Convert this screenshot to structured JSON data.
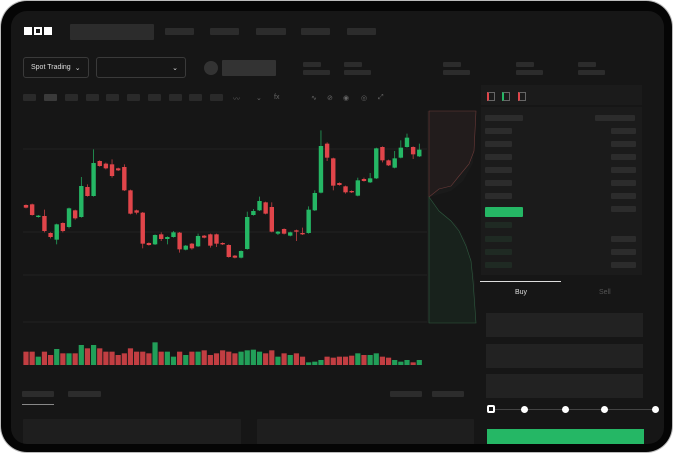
{
  "brand": {
    "logo": "OKX"
  },
  "toolbar": {
    "market_select": "Spot Trading"
  },
  "order_form": {
    "buy_tab": "Buy",
    "sell_tab": "Sell",
    "slider_percent": 0
  },
  "colors": {
    "up": "#25b765",
    "down": "#e0454a",
    "background": "#161616"
  },
  "icons": [
    "chevron-down-icon",
    "orderbook-both-icon",
    "orderbook-bids-icon",
    "orderbook-asks-icon"
  ],
  "chart_data": {
    "type": "candlestick",
    "ohlc": [
      [
        218,
        220,
        208,
        210
      ],
      [
        220,
        222,
        186,
        188
      ],
      [
        182,
        188,
        180,
        186
      ],
      [
        185,
        204,
        136,
        140
      ],
      [
        134,
        136,
        118,
        122
      ],
      [
        114,
        162,
        100,
        160
      ],
      [
        164,
        166,
        136,
        140
      ],
      [
        152,
        210,
        148,
        208
      ],
      [
        202,
        204,
        174,
        178
      ],
      [
        182,
        302,
        180,
        275
      ],
      [
        272,
        280,
        243,
        245
      ],
      [
        245,
        385,
        243,
        344
      ],
      [
        350,
        352,
        333,
        335
      ],
      [
        342,
        345,
        325,
        328
      ],
      [
        340,
        355,
        300,
        305
      ],
      [
        328,
        330,
        320,
        322
      ],
      [
        332,
        340,
        260,
        262
      ],
      [
        262,
        264,
        190,
        192
      ],
      [
        202,
        204,
        190,
        195
      ],
      [
        195,
        197,
        88,
        102
      ],
      [
        104,
        106,
        96,
        98
      ],
      [
        100,
        130,
        98,
        128
      ],
      [
        130,
        136,
        110,
        116
      ],
      [
        116,
        124,
        100,
        122
      ],
      [
        122,
        140,
        120,
        136
      ],
      [
        135,
        137,
        75,
        85
      ],
      [
        84,
        98,
        82,
        96
      ],
      [
        102,
        104,
        84,
        88
      ],
      [
        94,
        132,
        92,
        125
      ],
      [
        126,
        128,
        118,
        120
      ],
      [
        130,
        132,
        90,
        96
      ],
      [
        130,
        132,
        92,
        102
      ],
      [
        104,
        106,
        98,
        100
      ],
      [
        98,
        100,
        60,
        62
      ],
      [
        66,
        68,
        58,
        60
      ],
      [
        60,
        82,
        58,
        80
      ],
      [
        86,
        198,
        84,
        182
      ],
      [
        188,
        206,
        186,
        200
      ],
      [
        202,
        243,
        200,
        230
      ],
      [
        226,
        228,
        190,
        192
      ],
      [
        212,
        226,
        136,
        138
      ],
      [
        132,
        140,
        128,
        138
      ],
      [
        146,
        148,
        130,
        132
      ],
      [
        126,
        138,
        124,
        136
      ],
      [
        142,
        144,
        110,
        138
      ],
      [
        134,
        150,
        128,
        130
      ],
      [
        134,
        214,
        132,
        204
      ],
      [
        202,
        262,
        200,
        254
      ],
      [
        255,
        442,
        253,
        395
      ],
      [
        402,
        406,
        350,
        360
      ],
      [
        358,
        360,
        262,
        276
      ],
      [
        284,
        286,
        276,
        278
      ],
      [
        274,
        276,
        252,
        256
      ],
      [
        260,
        262,
        254,
        256
      ],
      [
        246,
        300,
        244,
        292
      ],
      [
        296,
        300,
        288,
        290
      ],
      [
        286,
        314,
        284,
        298
      ],
      [
        298,
        390,
        296,
        388
      ],
      [
        392,
        394,
        346,
        352
      ],
      [
        352,
        354,
        335,
        337
      ],
      [
        330,
        380,
        328,
        358
      ],
      [
        360,
        412,
        358,
        390
      ],
      [
        392,
        432,
        390,
        420
      ],
      [
        392,
        394,
        356,
        370
      ],
      [
        364,
        402,
        362,
        384
      ]
    ],
    "volume": [
      40,
      40,
      25,
      40,
      30,
      48,
      35,
      35,
      35,
      60,
      50,
      60,
      50,
      40,
      40,
      30,
      35,
      50,
      40,
      40,
      35,
      68,
      40,
      40,
      25,
      40,
      30,
      40,
      40,
      44,
      30,
      35,
      44,
      40,
      35,
      40,
      44,
      46,
      40,
      35,
      44,
      25,
      35,
      30,
      35,
      25,
      8,
      10,
      15,
      25,
      22,
      25,
      25,
      28,
      35,
      30,
      30,
      35,
      25,
      22,
      15,
      10,
      15,
      8,
      15
    ],
    "grid": true
  }
}
